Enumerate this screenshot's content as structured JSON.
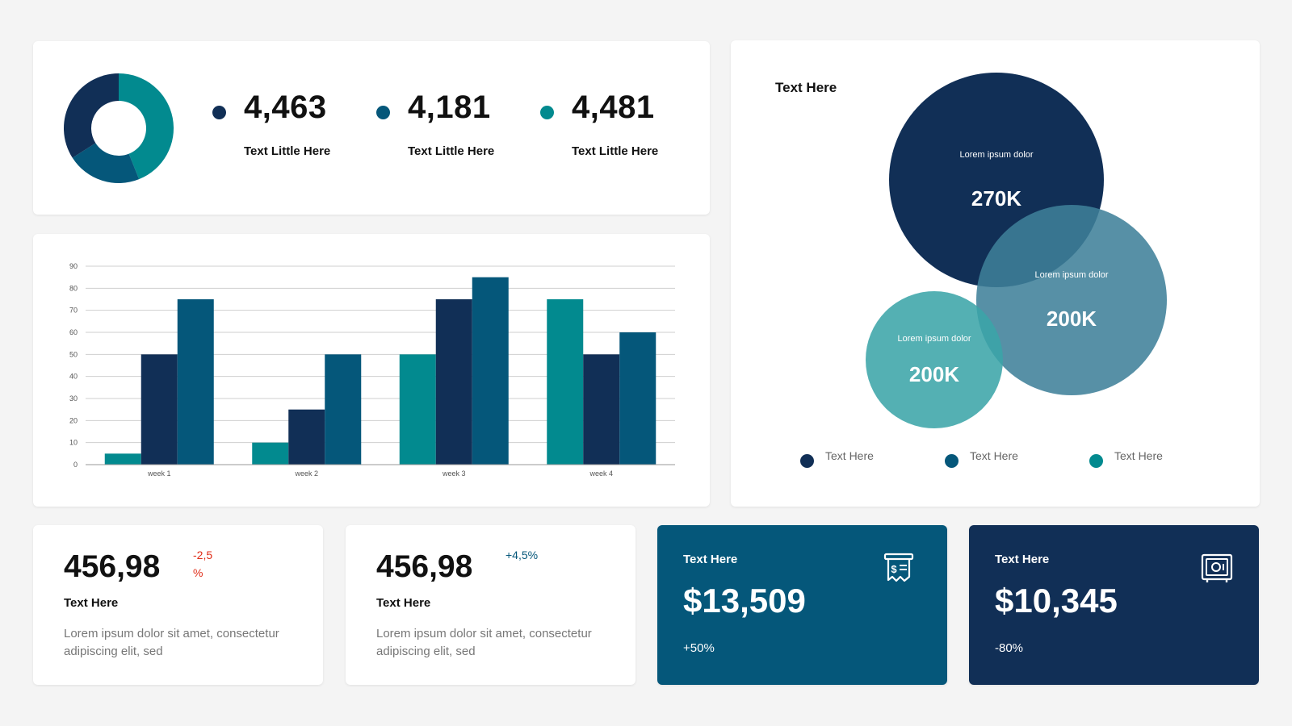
{
  "colors": {
    "navy": "#112f56",
    "blue": "#05577a",
    "teal": "#028a8f",
    "venn_mid": "#3e7f99",
    "venn_small": "#3ba4a8",
    "negative": "#e02d18",
    "positive": "#05577a"
  },
  "summary": {
    "chart_data": {
      "type": "pie",
      "variant": "donut",
      "values": [
        2,
        1,
        1.55
      ],
      "colors": [
        "#028a8f",
        "#05577a",
        "#112f56"
      ]
    },
    "stats": [
      {
        "value": "4,463",
        "label": "Text Little Here",
        "color": "#112f56"
      },
      {
        "value": "4,181",
        "label": "Text Little Here",
        "color": "#05577a"
      },
      {
        "value": "4,481",
        "label": "Text Little Here",
        "color": "#028a8f"
      }
    ]
  },
  "bar_chart": {
    "chart_data": {
      "type": "bar",
      "categories": [
        "week 1",
        "week 2",
        "week 3",
        "week 4"
      ],
      "ylim": [
        0,
        90
      ],
      "yticks": [
        "0",
        "10",
        "20",
        "30",
        "40",
        "50",
        "60",
        "70",
        "80",
        "90"
      ],
      "grid": true,
      "series": [
        {
          "values": [
            5,
            10,
            50,
            75
          ],
          "color": "#028a8f"
        },
        {
          "values": [
            50,
            25,
            75,
            50
          ],
          "color": "#112f56"
        },
        {
          "values": [
            75,
            50,
            85,
            60
          ],
          "color": "#05577a"
        }
      ]
    }
  },
  "venn": {
    "title": "Text Here",
    "circles": [
      {
        "caption": "Lorem ipsum dolor",
        "value": "270K",
        "color": "#112f56"
      },
      {
        "caption": "Lorem ipsum dolor",
        "value": "200K",
        "color": "#3e7f99"
      },
      {
        "caption": "Lorem ipsum dolor",
        "value": "200K",
        "color": "#3ba4a8"
      }
    ],
    "legend": [
      {
        "label": "Text Here",
        "color": "#112f56"
      },
      {
        "label": "Text Here",
        "color": "#05577a"
      },
      {
        "label": "Text Here",
        "color": "#028a8f"
      }
    ]
  },
  "kpis": [
    {
      "value": "456,98",
      "change": "-2,5 %",
      "change_color": "#e02d18",
      "title": "Text Here",
      "description": "Lorem ipsum dolor sit amet, consectetur adipiscing elit, sed"
    },
    {
      "value": "456,98",
      "change": "+4,5%",
      "change_color": "#05577a",
      "title": "Text Here",
      "description": "Lorem ipsum dolor sit amet, consectetur adipiscing elit, sed"
    }
  ],
  "money_cards": [
    {
      "title": "Text Here",
      "amount": "$13,509",
      "change": "+50%",
      "icon": "receipt-dollar-icon",
      "background": "#05577a"
    },
    {
      "title": "Text Here",
      "amount": "$10,345",
      "change": "-80%",
      "icon": "safe-icon",
      "background": "#112f56"
    }
  ]
}
